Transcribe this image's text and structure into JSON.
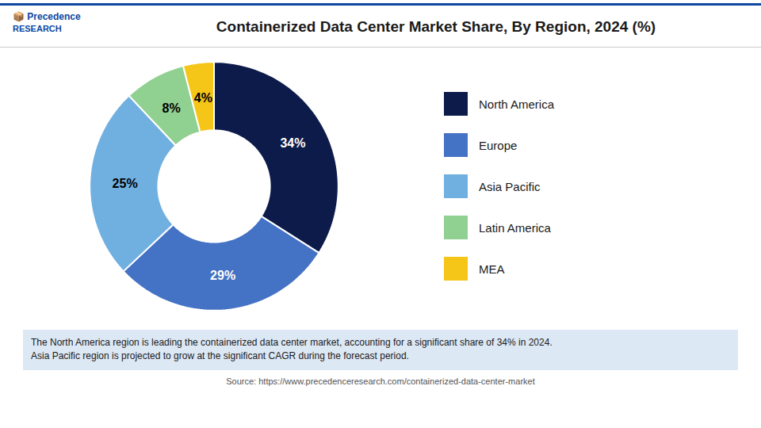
{
  "chart_data": {
    "type": "pie",
    "title": "Containerized Data Center Market Share, By Region, 2024 (%)",
    "categories": [
      "North America",
      "Europe",
      "Asia Pacific",
      "Latin America",
      "MEA"
    ],
    "values": [
      34,
      29,
      25,
      8,
      4
    ],
    "value_labels": [
      "34%",
      "29%",
      "25%",
      "8%",
      "4%"
    ],
    "colors": [
      "#0d1b4b",
      "#4472c4",
      "#70b0e0",
      "#90d090",
      "#f5c518"
    ],
    "data_labels": true,
    "legend": "right",
    "footnote": "The North America region is leading the containerized data center market, accounting for a significant share of 34% in 2024.\nAsia Pacific region is projected to grow at the significant CAGR during the forecast period.",
    "footnote_color": "#dde8f5",
    "source": "Source: https://www.precedenceresearch.com/containerized-data-center-market",
    "logo": [
      "📦 Precedence",
      "RESEARCH"
    ]
  }
}
